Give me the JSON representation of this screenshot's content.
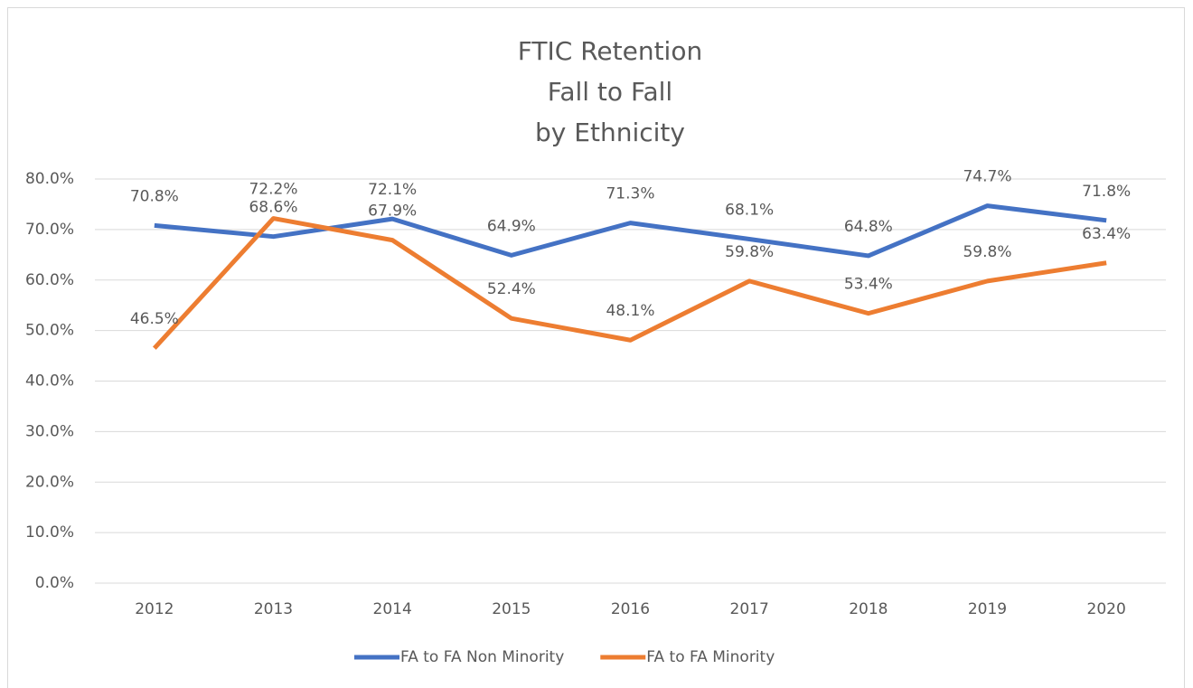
{
  "chart_data": {
    "type": "line",
    "title": [
      "FTIC Retention",
      "Fall to Fall",
      "by Ethnicity"
    ],
    "categories": [
      "2012",
      "2013",
      "2014",
      "2015",
      "2016",
      "2017",
      "2018",
      "2019",
      "2020"
    ],
    "series": [
      {
        "name": "FA to FA Non Minority",
        "color": "#4472c4",
        "values": [
          70.8,
          68.6,
          72.1,
          64.9,
          71.3,
          68.1,
          64.8,
          74.7,
          71.8
        ],
        "value_labels": [
          "70.8%",
          "68.6%",
          "72.1%",
          "64.9%",
          "71.3%",
          "68.1%",
          "64.8%",
          "74.7%",
          "71.8%"
        ]
      },
      {
        "name": "FA to FA Minority",
        "color": "#ed7d31",
        "values": [
          46.5,
          72.2,
          67.9,
          52.4,
          48.1,
          59.8,
          53.4,
          59.8,
          63.4
        ],
        "value_labels": [
          "46.5%",
          "72.2%",
          "67.9%",
          "52.4%",
          "48.1%",
          "59.8%",
          "53.4%",
          "59.8%",
          "63.4%"
        ]
      }
    ],
    "ylim": [
      0,
      80
    ],
    "yticks": [
      {
        "value": 0,
        "label": "0.0%"
      },
      {
        "value": 10,
        "label": "10.0%"
      },
      {
        "value": 20,
        "label": "20.0%"
      },
      {
        "value": 30,
        "label": "30.0%"
      },
      {
        "value": 40,
        "label": "40.0%"
      },
      {
        "value": 50,
        "label": "50.0%"
      },
      {
        "value": 60,
        "label": "60.0%"
      },
      {
        "value": 70,
        "label": "70.0%"
      },
      {
        "value": 80,
        "label": "80.0%"
      }
    ],
    "grid": true,
    "legend": "bottom"
  }
}
